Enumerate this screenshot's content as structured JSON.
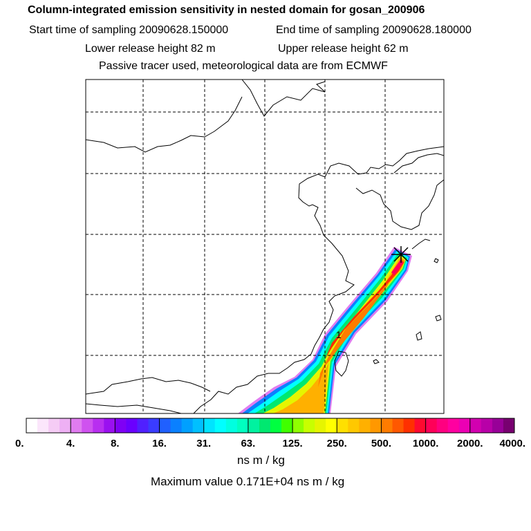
{
  "header": {
    "title": "Column-integrated emission sensitivity in nested domain for gosan_200906",
    "start_time": "Start time of sampling 20090628.150000",
    "end_time": "End time of sampling 20090628.180000",
    "lower_release": "Lower release height   82 m",
    "upper_release": "Upper release height   62 m",
    "tracer_note": "Passive tracer used, meteorological data are from ECMWF"
  },
  "map": {
    "site_marker_label": "1",
    "colors": {
      "frame": "#000000",
      "grid": "#000000",
      "coast": "#000000"
    }
  },
  "colorbar": {
    "tick_labels": [
      "0.",
      "4.",
      "8.",
      "16.",
      "31.",
      "63.",
      "125.",
      "250.",
      "500.",
      "1000.",
      "2000.",
      "4000."
    ],
    "colors": [
      "#ffffff",
      "#fbe6fb",
      "#f5ccf5",
      "#eeb0f4",
      "#e07cf0",
      "#cf52ef",
      "#b82ef0",
      "#9a10f0",
      "#7f00f5",
      "#6a00ff",
      "#5020ff",
      "#3a3cff",
      "#2060ff",
      "#0a80ff",
      "#00a0ff",
      "#00c0ff",
      "#00e4ff",
      "#00ffff",
      "#00ffe0",
      "#00ffc0",
      "#00f2a0",
      "#00e870",
      "#00ff40",
      "#40ff00",
      "#90ff00",
      "#c8ff00",
      "#e6f500",
      "#ffff00",
      "#ffe000",
      "#ffc800",
      "#ffb000",
      "#ff9800",
      "#ff7c00",
      "#ff5800",
      "#ff3000",
      "#ff0a30",
      "#ff0058",
      "#ff0080",
      "#ff00a0",
      "#ec00b4",
      "#d200b0",
      "#b800a8",
      "#980098",
      "#780070"
    ],
    "units": "ns m / kg",
    "max_value": "Maximum value  0.171E+04 ns m / kg"
  }
}
